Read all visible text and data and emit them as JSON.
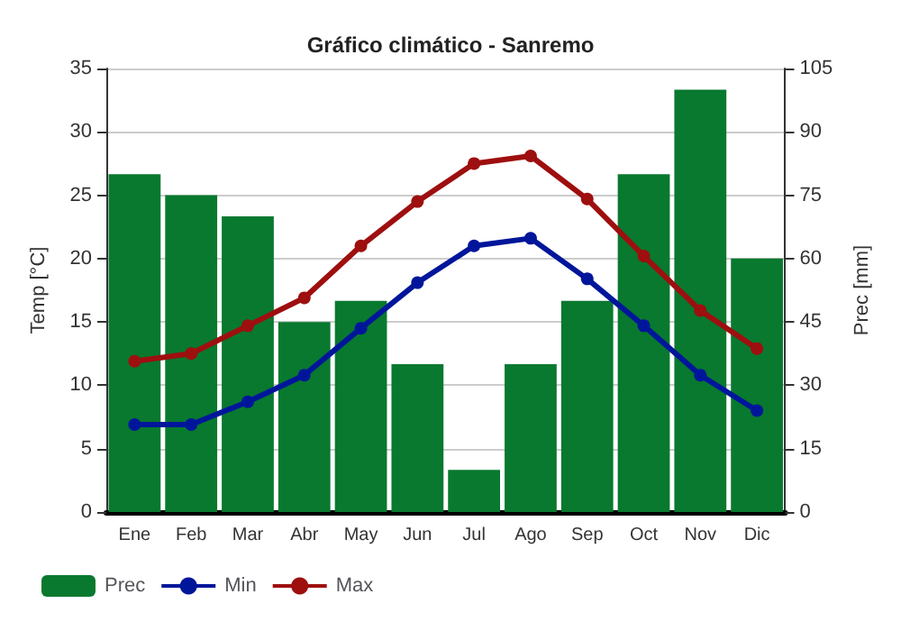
{
  "chart_data": {
    "type": "bar",
    "title": "Gráfico climático - Sanremo",
    "ylabel": "Temp [°C]",
    "y2label": "Prec [mm]",
    "categories": [
      "Ene",
      "Feb",
      "Mar",
      "Abr",
      "May",
      "Jun",
      "Jul",
      "Ago",
      "Sep",
      "Oct",
      "Nov",
      "Dic"
    ],
    "series": [
      {
        "name": "Prec",
        "axis": "y2",
        "color": "#08792f",
        "values": [
          80,
          75,
          70,
          45,
          50,
          35,
          10,
          35,
          50,
          80,
          100,
          60
        ]
      },
      {
        "name": "Min",
        "type": "line",
        "color": "#00169a",
        "values": [
          6.9,
          6.9,
          8.7,
          10.8,
          14.5,
          18.1,
          21,
          21.6,
          18.4,
          14.7,
          10.8,
          8.0
        ]
      },
      {
        "name": "Max",
        "type": "line",
        "color": "#9e0f0f",
        "values": [
          11.9,
          12.5,
          14.7,
          16.9,
          21,
          24.5,
          27.5,
          28.1,
          24.7,
          20.2,
          15.9,
          12.9
        ]
      }
    ],
    "ylim": [
      0,
      35
    ],
    "yticks": [
      0,
      5,
      10,
      15,
      20,
      25,
      30,
      35
    ],
    "y2lim": [
      0,
      105
    ],
    "y2ticks": [
      0,
      15,
      30,
      45,
      60,
      75,
      90,
      105
    ],
    "grid": "y",
    "legend": "bottom left",
    "marker": "circle",
    "line_style": "solid"
  }
}
